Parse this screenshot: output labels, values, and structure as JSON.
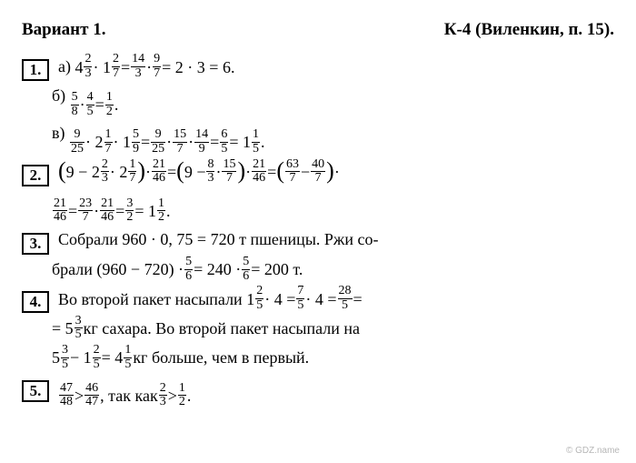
{
  "header": {
    "left": "Вариант 1.",
    "right": "К-4 (Виленкин, п. 15)."
  },
  "colors": {
    "text": "#000000",
    "background": "#ffffff",
    "watermark": "#b7b7b7"
  },
  "typography": {
    "font_family": "Times New Roman",
    "base_size_pt": 14,
    "header_bold": true
  },
  "items": [
    {
      "num": "1.",
      "lines": [
        {
          "label": "а)",
          "expr": [
            "4",
            {
              "f": [
                "2",
                "3"
              ]
            },
            " · 1",
            {
              "f": [
                "2",
                "7"
              ]
            },
            " = ",
            {
              "f": [
                "14",
                "3"
              ]
            },
            " · ",
            {
              "f": [
                "9",
                "7"
              ]
            },
            " = 2 · 3 = 6."
          ]
        },
        {
          "label": "б)",
          "expr": [
            {
              "f": [
                "5",
                "8"
              ]
            },
            " · ",
            {
              "f": [
                "4",
                "5"
              ]
            },
            " = ",
            {
              "f": [
                "1",
                "2"
              ]
            },
            "."
          ]
        },
        {
          "label": "в)",
          "expr": [
            {
              "f": [
                "9",
                "25"
              ]
            },
            " · 2",
            {
              "f": [
                "1",
                "7"
              ]
            },
            " · 1",
            {
              "f": [
                "5",
                "9"
              ]
            },
            " = ",
            {
              "f": [
                "9",
                "25"
              ]
            },
            " · ",
            {
              "f": [
                "15",
                "7"
              ]
            },
            " · ",
            {
              "f": [
                "14",
                "9"
              ]
            },
            " = ",
            {
              "f": [
                "6",
                "5"
              ]
            },
            " = 1",
            {
              "f": [
                "1",
                "5"
              ]
            },
            "."
          ]
        }
      ]
    },
    {
      "num": "2.",
      "lines": [
        {
          "expr": [
            "(",
            "9 − 2",
            {
              "f": [
                "2",
                "3"
              ]
            },
            " · 2",
            {
              "f": [
                "1",
                "7"
              ]
            },
            ")",
            " · ",
            {
              "f": [
                "21",
                "46"
              ]
            },
            " = ",
            "(",
            "9 − ",
            {
              "f": [
                "8",
                "3"
              ]
            },
            " · ",
            {
              "f": [
                "15",
                "7"
              ]
            },
            ")",
            " · ",
            {
              "f": [
                "21",
                "46"
              ]
            },
            " = ",
            "(",
            {
              "f": [
                "63",
                "7"
              ]
            },
            " − ",
            {
              "f": [
                "40",
                "7"
              ]
            },
            ")",
            " ·"
          ]
        },
        {
          "expr": [
            {
              "f": [
                "21",
                "46"
              ]
            },
            " = ",
            {
              "f": [
                "23",
                "7"
              ]
            },
            " · ",
            {
              "f": [
                "21",
                "46"
              ]
            },
            " = ",
            {
              "f": [
                "3",
                "2"
              ]
            },
            " = 1",
            {
              "f": [
                "1",
                "2"
              ]
            },
            "."
          ]
        }
      ]
    },
    {
      "num": "3.",
      "lines": [
        {
          "expr": [
            "Собрали 960 · 0, 75 = 720 т пшеницы. Ржи со-"
          ]
        },
        {
          "expr": [
            "брали (960 − 720) · ",
            {
              "f": [
                "5",
                "6"
              ]
            },
            " = 240 · ",
            {
              "f": [
                "5",
                "6"
              ]
            },
            " = 200 т."
          ]
        }
      ]
    },
    {
      "num": "4.",
      "lines": [
        {
          "expr": [
            "Во второй пакет насыпали 1",
            {
              "f": [
                "2",
                "5"
              ]
            },
            " · 4 = ",
            {
              "f": [
                "7",
                "5"
              ]
            },
            " · 4 = ",
            {
              "f": [
                "28",
                "5"
              ]
            },
            " ="
          ]
        },
        {
          "expr": [
            "= 5",
            {
              "f": [
                "3",
                "5"
              ]
            },
            " кг сахара. Во второй пакет насыпали на"
          ]
        },
        {
          "expr": [
            "5",
            {
              "f": [
                "3",
                "5"
              ]
            },
            " − 1",
            {
              "f": [
                "2",
                "5"
              ]
            },
            " = 4",
            {
              "f": [
                "1",
                "5"
              ]
            },
            " кг больше, чем в первый."
          ]
        }
      ]
    },
    {
      "num": "5.",
      "lines": [
        {
          "expr": [
            {
              "f": [
                "47",
                "48"
              ]
            },
            " > ",
            {
              "f": [
                "46",
                "47"
              ]
            },
            ", так как ",
            {
              "f": [
                "2",
                "3"
              ]
            },
            " > ",
            {
              "f": [
                "1",
                "2"
              ]
            },
            "."
          ]
        }
      ]
    }
  ],
  "watermark": "© GDZ.name"
}
